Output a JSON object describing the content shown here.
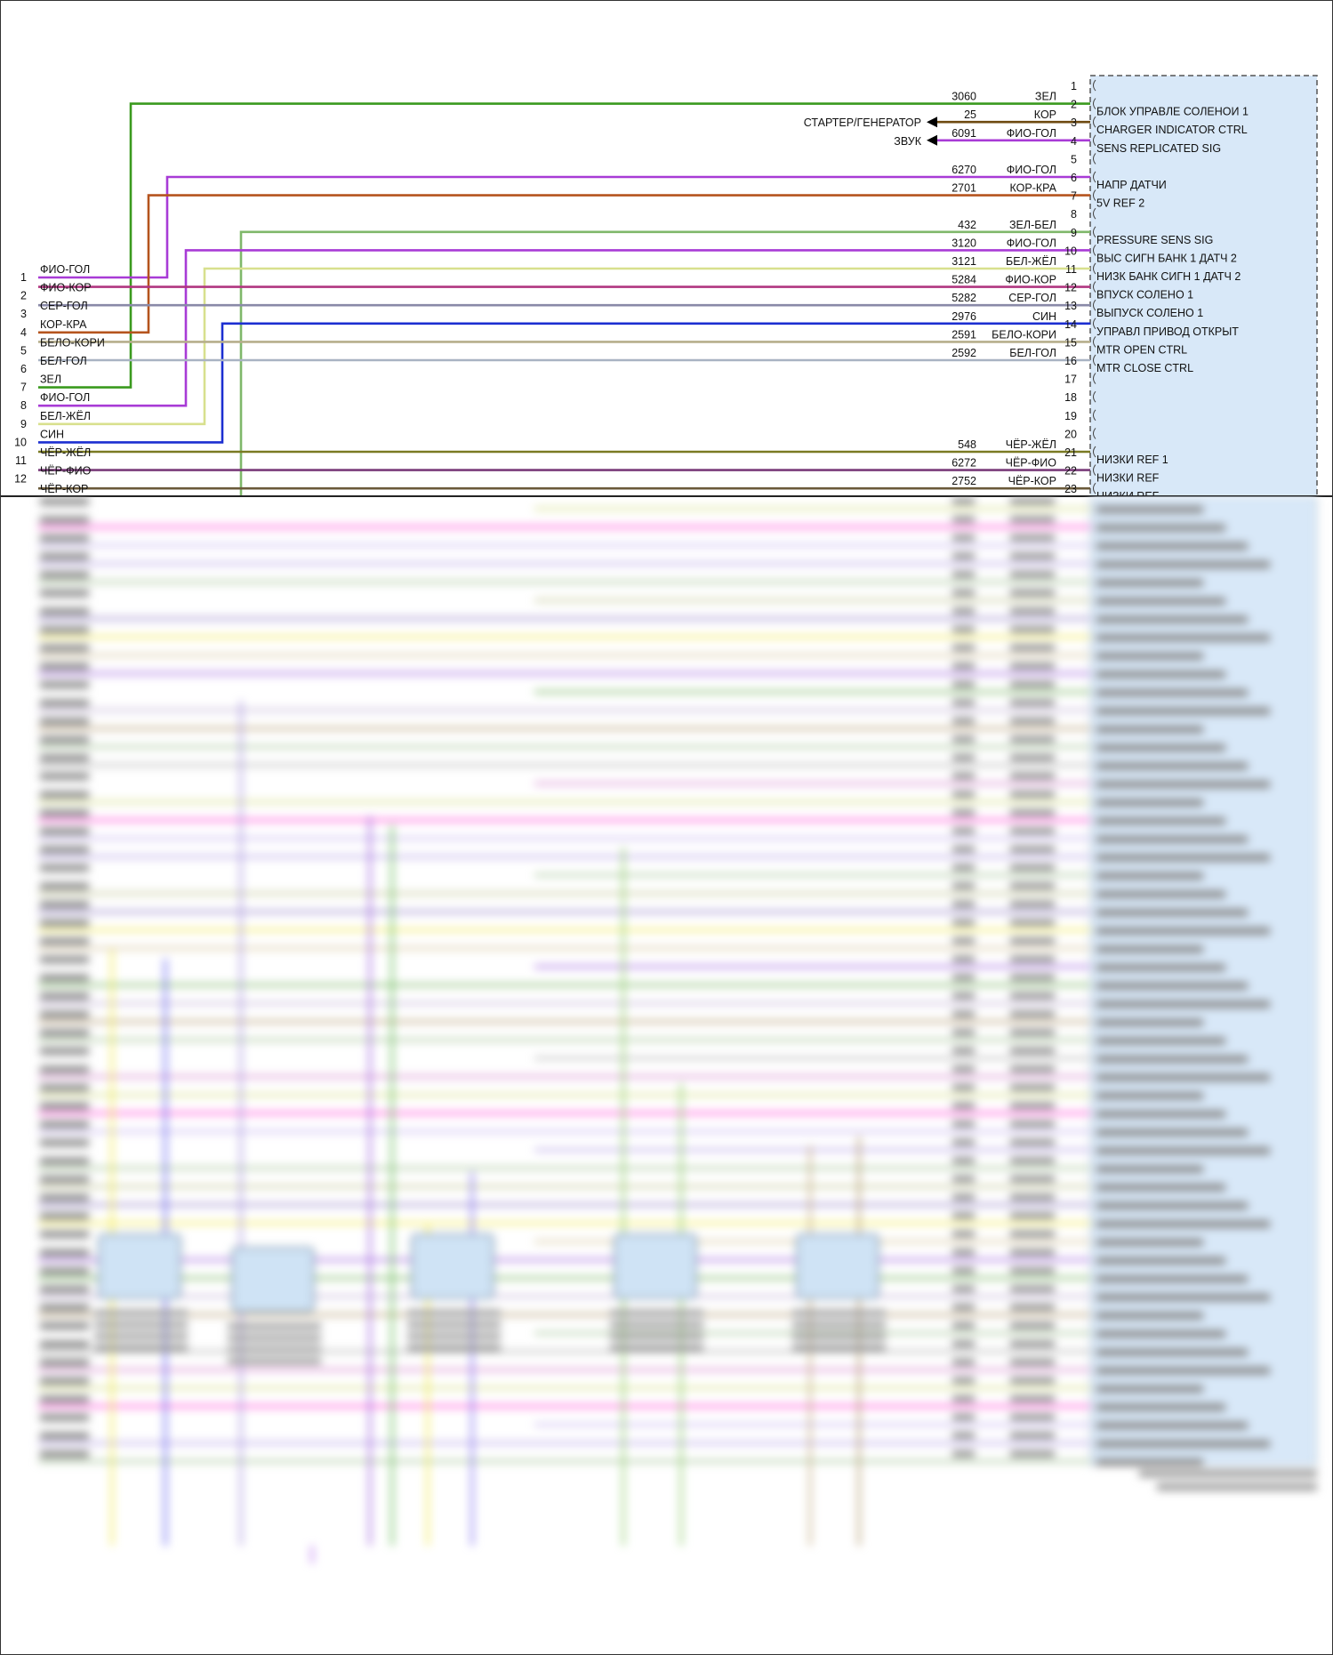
{
  "colors": {
    "ЗЕЛ": "#3a9a1e",
    "КОР": "#6e4a10",
    "ФИО-ГОЛ": "#a83bd6",
    "КОР-КРА": "#b5541e",
    "ЗЕЛ-БЕЛ": "#7fb86a",
    "БЕЛ-ЖЁЛ": "#d8e08e",
    "ФИО-КОР": "#b03680",
    "СЕР-ГОЛ": "#8a8aa8",
    "СИН": "#1c2fd1",
    "БЕЛО-КОРИ": "#b6ae8c",
    "БЕЛ-ГОЛ": "#a9b3c3",
    "ЧЁР-ЖЁЛ": "#7a7a22",
    "ЧЁР-ФИО": "#7a3b7a",
    "ЧЁР-КОР": "#6a5a3a",
    "module_fill": "#d8e8f8",
    "module_border": "#555555"
  },
  "module": {
    "icon": "dashed-connector-icon",
    "pin_numbers": [
      "1",
      "5",
      "8",
      "17",
      "18",
      "19",
      "20"
    ],
    "pins": [
      {
        "pin": "2",
        "circuit": "3060",
        "color_label": "ЗЕЛ",
        "function": "БЛОК УПРАВЛЕ СОЛЕНОИ 1"
      },
      {
        "pin": "3",
        "circuit": "25",
        "color_label": "КОР",
        "function": "CHARGER INDICATOR CTRL"
      },
      {
        "pin": "4",
        "circuit": "6091",
        "color_label": "ФИО-ГОЛ",
        "function": "SENS REPLICATED SIG"
      },
      {
        "pin": "6",
        "circuit": "6270",
        "color_label": "ФИО-ГОЛ",
        "function": "НАПР ДАТЧИ"
      },
      {
        "pin": "7",
        "circuit": "2701",
        "color_label": "КОР-КРА",
        "function": "5V REF 2"
      },
      {
        "pin": "9",
        "circuit": "432",
        "color_label": "ЗЕЛ-БЕЛ",
        "function": "PRESSURE SENS SIG"
      },
      {
        "pin": "10",
        "circuit": "3120",
        "color_label": "ФИО-ГОЛ",
        "function": "ВЫС СИГН БАНК 1 ДАТЧ 2"
      },
      {
        "pin": "11",
        "circuit": "3121",
        "color_label": "БЕЛ-ЖЁЛ",
        "function": "НИЗК БАНК СИГН 1 ДАТЧ 2"
      },
      {
        "pin": "12",
        "circuit": "5284",
        "color_label": "ФИО-КОР",
        "function": "ВПУСК СОЛЕНО 1"
      },
      {
        "pin": "13",
        "circuit": "5282",
        "color_label": "СЕР-ГОЛ",
        "function": "ВЫПУСК СОЛЕНО 1"
      },
      {
        "pin": "14",
        "circuit": "2976",
        "color_label": "СИН",
        "function": "УПРАВЛ ПРИВОД ОТКРЫТ"
      },
      {
        "pin": "15",
        "circuit": "2591",
        "color_label": "БЕЛО-КОРИ",
        "function": "MTR OPEN CTRL"
      },
      {
        "pin": "16",
        "circuit": "2592",
        "color_label": "БЕЛ-ГОЛ",
        "function": "MTR CLOSE CTRL"
      },
      {
        "pin": "21",
        "circuit": "548",
        "color_label": "ЧЁР-ЖЁЛ",
        "function": "НИЗКИ REF 1"
      },
      {
        "pin": "22",
        "circuit": "6272",
        "color_label": "ЧЁР-ФИО",
        "function": "НИЗКИ REF"
      },
      {
        "pin": "23",
        "circuit": "2752",
        "color_label": "ЧЁР-КОР",
        "function": "НИЗКИ REF"
      }
    ]
  },
  "arrows": [
    {
      "label": "СТАРТЕР/ГЕНЕРАТОР",
      "pin": "3"
    },
    {
      "label": "ЗВУК",
      "pin": "4"
    }
  ],
  "left_connector": [
    {
      "pin": "1",
      "label": "ФИО-ГОЛ"
    },
    {
      "pin": "2",
      "label": "ФИО-КОР"
    },
    {
      "pin": "3",
      "label": "СЕР-ГОЛ"
    },
    {
      "pin": "4",
      "label": "КОР-КРА"
    },
    {
      "pin": "5",
      "label": "БЕЛО-КОРИ"
    },
    {
      "pin": "6",
      "label": "БЕЛ-ГОЛ"
    },
    {
      "pin": "7",
      "label": "ЗЕЛ"
    },
    {
      "pin": "8",
      "label": "ФИО-ГОЛ"
    },
    {
      "pin": "9",
      "label": "БЕЛ-ЖЁЛ"
    },
    {
      "pin": "10",
      "label": "СИН"
    },
    {
      "pin": "11",
      "label": "ЧЁР-ЖЁЛ"
    },
    {
      "pin": "12",
      "label": "ЧЁР-ФИО"
    },
    {
      "pin": "",
      "label": "ЧЁР-КОР"
    }
  ]
}
